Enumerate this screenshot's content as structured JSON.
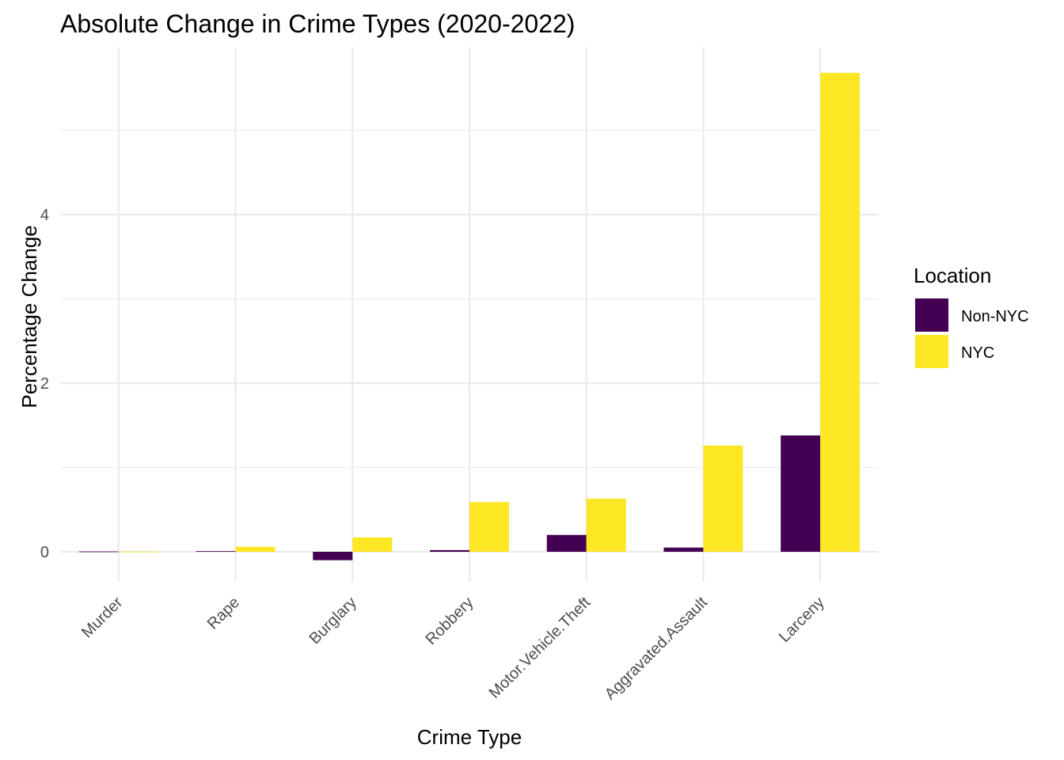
{
  "chart_data": {
    "type": "bar",
    "title": "Absolute Change in Crime Types (2020-2022)",
    "xlabel": "Crime Type",
    "ylabel": "Percentage Change",
    "categories": [
      "Murder",
      "Rape",
      "Burglary",
      "Robbery",
      "Motor.Vehicle.Theft",
      "Aggravated.Assault",
      "Larceny"
    ],
    "series": [
      {
        "name": "Non-NYC",
        "color": "#440154",
        "values": [
          0.004,
          0.008,
          -0.1,
          0.02,
          0.2,
          0.05,
          1.38
        ]
      },
      {
        "name": "NYC",
        "color": "#FDE725",
        "values": [
          0.002,
          0.06,
          0.17,
          0.59,
          0.63,
          1.26,
          5.68
        ]
      }
    ],
    "ylim": [
      -0.35,
      6.0
    ],
    "yticks": [
      0,
      2,
      4
    ],
    "grid": true,
    "legend": {
      "title": "Location",
      "position": "right"
    }
  }
}
